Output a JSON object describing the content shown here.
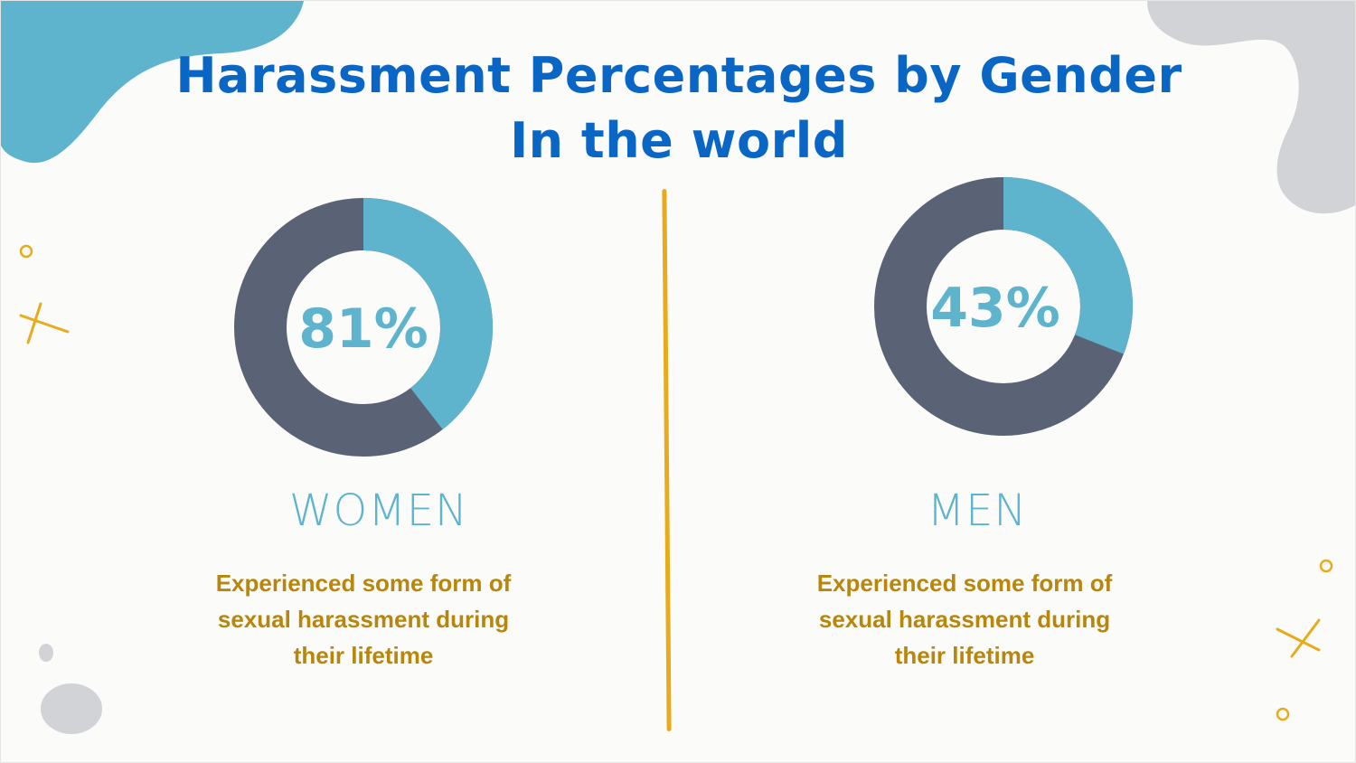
{
  "title": {
    "line1": "Harassment Percentages by Gender",
    "line2": "In the world"
  },
  "colors": {
    "title": "#0a66c4",
    "highlight": "#5fb4cd",
    "remainder": "#5a6275",
    "label": "#5fb4cd",
    "description": "#b8860b",
    "divider": "#e8ab1c",
    "blob_blue": "#5fb4cd",
    "blob_gray": "#d2d3d6"
  },
  "chart_data": [
    {
      "type": "pie",
      "name": "WOMEN",
      "value_label": "81%",
      "value": 81,
      "description": "Experienced some form of sexual harassment during their lifetime"
    },
    {
      "type": "pie",
      "name": "MEN",
      "value_label": "43%",
      "value": 43,
      "description": "Experienced some form of sexual harassment during their lifetime"
    }
  ],
  "panels": {
    "women": {
      "label": "WOMEN",
      "percent": "81%",
      "desc_line1": "Experienced some form of",
      "desc_line2": "sexual harassment during",
      "desc_line3": "their lifetime"
    },
    "men": {
      "label": "MEN",
      "percent": "43%",
      "desc_line1": "Experienced some form of",
      "desc_line2": "sexual harassment during",
      "desc_line3": "their lifetime"
    }
  }
}
